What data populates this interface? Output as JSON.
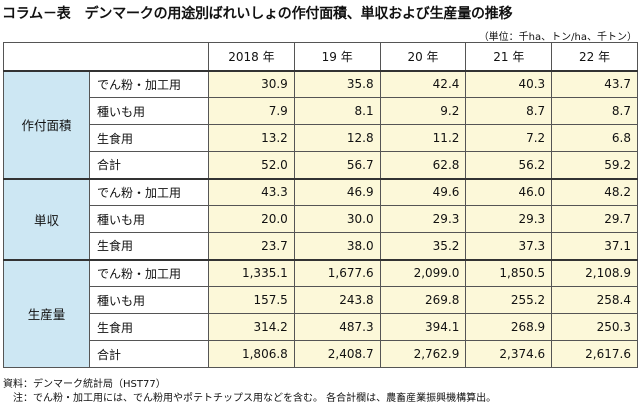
{
  "title": {
    "label": "コラム－表",
    "text": "デンマークの用途別ばれいしょの作付面積、単収および生産量の推移"
  },
  "unit_note": "（単位：千ha、トン/ha、千トン）",
  "columns": [
    "2018 年",
    "19 年",
    "20 年",
    "21 年",
    "22 年"
  ],
  "groups": [
    {
      "category": "作付面積",
      "rows": [
        {
          "item": "でん粉・加工用",
          "values": [
            "30.9",
            "35.8",
            "42.4",
            "40.3",
            "43.7"
          ]
        },
        {
          "item": "種いも用",
          "values": [
            "7.9",
            "8.1",
            "9.2",
            "8.7",
            "8.7"
          ]
        },
        {
          "item": "生食用",
          "values": [
            "13.2",
            "12.8",
            "11.2",
            "7.2",
            "6.8"
          ]
        },
        {
          "item": "合計",
          "values": [
            "52.0",
            "56.7",
            "62.8",
            "56.2",
            "59.2"
          ]
        }
      ]
    },
    {
      "category": "単収",
      "rows": [
        {
          "item": "でん粉・加工用",
          "values": [
            "43.3",
            "46.9",
            "49.6",
            "46.0",
            "48.2"
          ]
        },
        {
          "item": "種いも用",
          "values": [
            "20.0",
            "30.0",
            "29.3",
            "29.3",
            "29.7"
          ]
        },
        {
          "item": "生食用",
          "values": [
            "23.7",
            "38.0",
            "35.2",
            "37.3",
            "37.1"
          ]
        }
      ]
    },
    {
      "category": "生産量",
      "rows": [
        {
          "item": "でん粉・加工用",
          "values": [
            "1,335.1",
            "1,677.6",
            "2,099.0",
            "1,850.5",
            "2,108.9"
          ]
        },
        {
          "item": "種いも用",
          "values": [
            "157.5",
            "243.8",
            "269.8",
            "255.2",
            "258.4"
          ]
        },
        {
          "item": "生食用",
          "values": [
            "314.2",
            "487.3",
            "394.1",
            "268.9",
            "250.3"
          ]
        },
        {
          "item": "合計",
          "values": [
            "1,806.8",
            "2,408.7",
            "2,762.9",
            "2,374.6",
            "2,617.6"
          ]
        }
      ]
    }
  ],
  "notes": {
    "source": "資料：デンマーク統計局（HST77）",
    "note": "　注：でん粉・加工用には、でん粉用やポテトチップス用などを含む。 各合計欄は、農畜産業振興機構算出。"
  },
  "colors": {
    "category_bg": "#cde7f3",
    "value_bg": "#fcf8d9",
    "border": "#555555"
  }
}
